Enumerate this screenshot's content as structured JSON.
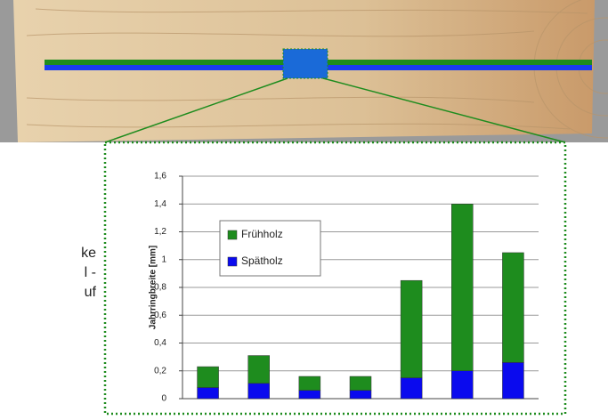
{
  "fragments": [
    "ke",
    "l -",
    "uf"
  ],
  "chart_data": {
    "type": "bar",
    "stacked": true,
    "y_label": "Jahrringbreite [mm]",
    "categories": [
      null,
      null,
      null,
      null,
      null,
      null,
      null
    ],
    "series": [
      {
        "name": "Frühholz",
        "color": "#1e8c1e",
        "values": [
          0.15,
          0.2,
          0.1,
          0.1,
          0.7,
          1.2,
          0.79
        ]
      },
      {
        "name": "Spätholz",
        "color": "#0a0aee",
        "values": [
          0.08,
          0.11,
          0.06,
          0.06,
          0.15,
          0.2,
          0.26
        ]
      }
    ],
    "ylim": [
      0,
      1.6
    ],
    "yticks": [
      0,
      {
        "value": 0.2,
        "label": "0,2"
      },
      {
        "value": 0.4,
        "label": "0,4"
      },
      {
        "value": 0.6,
        "label": "0,6"
      },
      {
        "value": 0.8,
        "label": "0,8"
      },
      1,
      {
        "value": 1.2,
        "label": "1,2"
      },
      {
        "value": 1.4,
        "label": "1,4"
      },
      {
        "value": 1.6,
        "label": "1,6"
      }
    ],
    "grid": true
  }
}
